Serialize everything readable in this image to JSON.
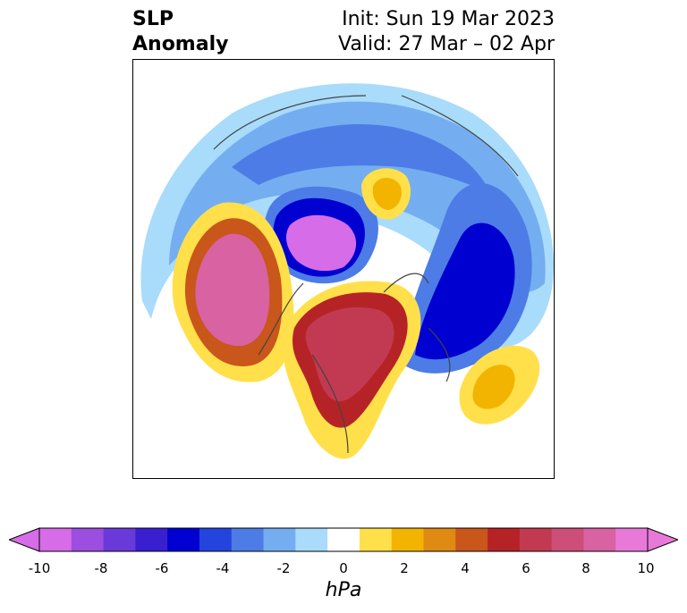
{
  "title": {
    "left_line1": "SLP",
    "left_line2": "Anomaly",
    "init": "Init: Sun 19 Mar 2023",
    "valid": "Valid: 27 Mar – 02 Apr"
  },
  "colorbar": {
    "unit": "hPa",
    "ticks": [
      "-10",
      "-8",
      "-6",
      "-4",
      "-2",
      "0",
      "2",
      "4",
      "6",
      "8",
      "10"
    ],
    "colors": [
      "#d66ce8",
      "#9b4ee0",
      "#6a39d9",
      "#3a1fd0",
      "#0000d0",
      "#2444de",
      "#4d7ce6",
      "#74aef0",
      "#a9dbfb",
      "#ffffff",
      "#ffe04a",
      "#f2b400",
      "#df8a12",
      "#c9561a",
      "#b62326",
      "#c23a52",
      "#cd4e78",
      "#d862a2",
      "#e979d8"
    ],
    "extend_low_color": "#d66ce8",
    "extend_high_color": "#e979d8"
  }
}
